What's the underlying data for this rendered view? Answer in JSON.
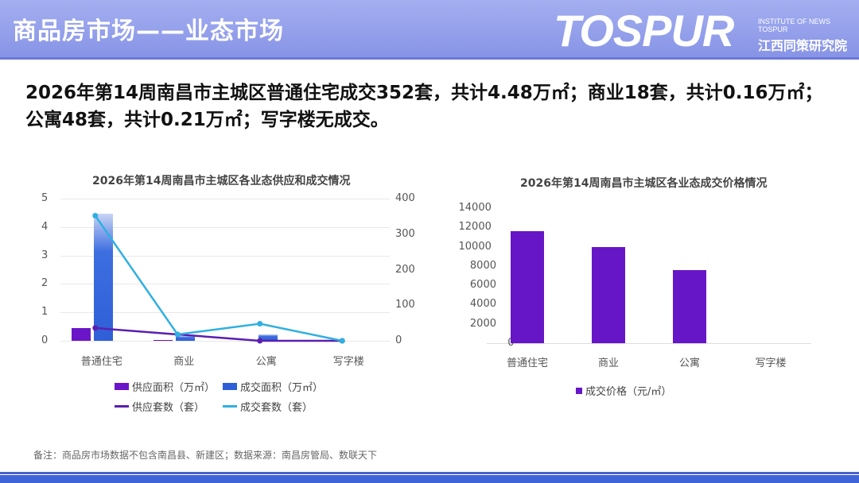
{
  "header": {
    "title": "商品房市场——业态市场",
    "logo": "TOSPUR",
    "logo_en": "INSTITUTE OF NEWS TOSPUR",
    "logo_cn": "江西同策研究院"
  },
  "summary": "2026年第14周南昌市主城区普通住宅成交352套，共计4.48万㎡；商业18套，共计0.16万㎡；公寓48套，共计0.21万㎡；写字楼无成交。",
  "note": "备注：商品房市场数据不包含南昌县、新建区；数据来源：南昌房管局、数联天下",
  "chart_data": [
    {
      "type": "bar+line",
      "title": "2026年第14周南昌市主城区各业态供应和成交情况",
      "categories": [
        "普通住宅",
        "商业",
        "公寓",
        "写字楼"
      ],
      "left_axis": {
        "ticks": [
          "0",
          "1",
          "2",
          "3",
          "4",
          "5"
        ],
        "ylim": [
          0,
          5
        ]
      },
      "right_axis": {
        "ticks": [
          "0",
          "100",
          "200",
          "300",
          "400"
        ],
        "ylim": [
          0,
          400
        ]
      },
      "series": [
        {
          "name": "供应面积（万㎡）",
          "type": "bar",
          "axis": "left",
          "color": "#6a16c8",
          "values": [
            0.45,
            0.01,
            0,
            0
          ]
        },
        {
          "name": "成交面积（万㎡）",
          "type": "bar",
          "axis": "left",
          "color": "#2f5fd8",
          "values": [
            4.48,
            0.16,
            0.21,
            0
          ]
        },
        {
          "name": "供应套数（套）",
          "type": "line",
          "axis": "right",
          "color": "#5a1fb0",
          "values": [
            36,
            18,
            0,
            0
          ]
        },
        {
          "name": "成交套数（套）",
          "type": "line",
          "axis": "right",
          "color": "#2fb0e0",
          "values": [
            352,
            18,
            48,
            0
          ]
        }
      ],
      "legend": [
        "供应面积（万㎡）",
        "成交面积（万㎡）",
        "供应套数（套）",
        "成交套数（套）"
      ],
      "legend_position": "bottom"
    },
    {
      "type": "bar",
      "title": "2026年第14周南昌市主城区各业态成交价格情况",
      "categories": [
        "普通住宅",
        "商业",
        "公寓",
        "写字楼"
      ],
      "values": [
        11600,
        10000,
        7550,
        0
      ],
      "ticks": [
        "0",
        "2000",
        "4000",
        "6000",
        "8000",
        "10000",
        "12000",
        "14000"
      ],
      "ylim": [
        0,
        14000
      ],
      "color": "#6616c6",
      "legend": [
        "成交价格（元/㎡）"
      ],
      "legend_position": "bottom"
    }
  ]
}
